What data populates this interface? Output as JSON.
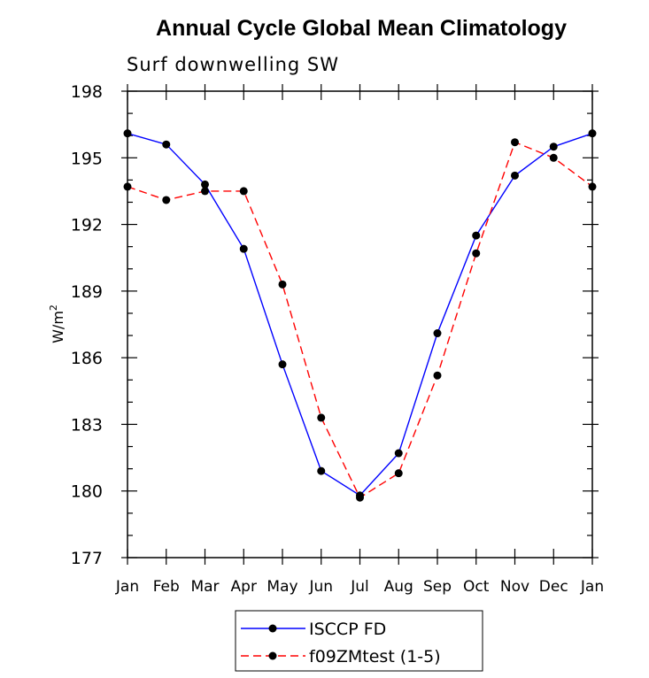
{
  "chart_data": {
    "type": "line",
    "title": "Annual Cycle Global Mean Climatology",
    "subtitle": "Surf downwelling SW",
    "ylabel": "W/m",
    "ylabel_sup": "2",
    "xlabel": "",
    "ylim": [
      177,
      198
    ],
    "yticks": [
      "198",
      "195",
      "192",
      "189",
      "186",
      "183",
      "180",
      "177"
    ],
    "categories": [
      "Jan",
      "Feb",
      "Mar",
      "Apr",
      "May",
      "Jun",
      "Jul",
      "Aug",
      "Sep",
      "Oct",
      "Nov",
      "Dec",
      "Jan"
    ],
    "grid": false,
    "legend_position": "bottom-center",
    "series": [
      {
        "name": "ISCCP FD",
        "color": "#0000ff",
        "dash": "solid",
        "values": [
          196.1,
          195.6,
          193.8,
          190.9,
          185.7,
          180.9,
          179.8,
          181.7,
          187.1,
          191.5,
          194.2,
          195.5,
          196.1
        ]
      },
      {
        "name": "f09ZMtest (1-5)",
        "color": "#ff0000",
        "dash": "dashed",
        "values": [
          193.7,
          193.1,
          193.5,
          193.5,
          189.3,
          183.3,
          179.7,
          180.8,
          185.2,
          190.7,
          195.7,
          195.0,
          193.7
        ]
      }
    ]
  }
}
